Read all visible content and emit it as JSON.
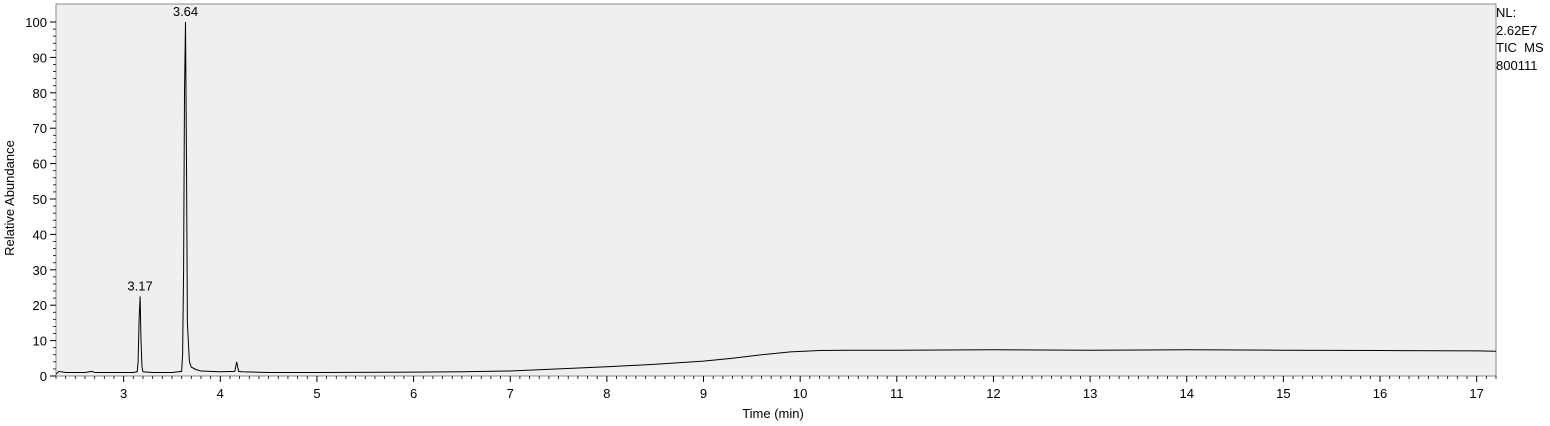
{
  "chart_data": {
    "type": "line",
    "xlabel": "Time (min)",
    "ylabel": "Relative Abundance",
    "xlim": [
      2.3,
      17.2
    ],
    "ylim": [
      0,
      100
    ],
    "x_ticks": [
      3,
      4,
      5,
      6,
      7,
      8,
      9,
      10,
      11,
      12,
      13,
      14,
      15,
      16,
      17
    ],
    "y_ticks": [
      0,
      10,
      20,
      30,
      40,
      50,
      60,
      70,
      80,
      90,
      100
    ],
    "grid": false,
    "annotations": [
      {
        "x": 3.17,
        "y": 22.5,
        "label": "3.17"
      },
      {
        "x": 3.64,
        "y": 100,
        "label": "3.64"
      }
    ],
    "series": [
      {
        "x": [
          2.3,
          2.33,
          2.4,
          2.6,
          2.67,
          2.7,
          2.9,
          3.1,
          3.14,
          3.15,
          3.16,
          3.17,
          3.18,
          3.19,
          3.2,
          3.3,
          3.5,
          3.6,
          3.61,
          3.62,
          3.63,
          3.64,
          3.65,
          3.66,
          3.68,
          3.7,
          3.75,
          3.8,
          4.0,
          4.15,
          4.17,
          4.18,
          4.19,
          4.22,
          4.5,
          5.0,
          6.0,
          6.5,
          7.0,
          7.5,
          8.0,
          8.5,
          9.0,
          9.3,
          9.6,
          9.9,
          10.2,
          10.5,
          11.0,
          12.0,
          13.0,
          14.0,
          15.0,
          16.0,
          17.0,
          17.2
        ],
        "y": [
          0.5,
          1.3,
          1.0,
          1.0,
          1.3,
          1.0,
          1.0,
          1.0,
          1.2,
          4.0,
          16.0,
          22.5,
          10.0,
          2.5,
          1.2,
          1.0,
          1.0,
          1.3,
          6.0,
          30.0,
          80.0,
          100.0,
          60.0,
          15.0,
          4.0,
          2.5,
          1.8,
          1.4,
          1.2,
          1.3,
          4.0,
          2.5,
          1.3,
          1.2,
          1.0,
          1.0,
          1.1,
          1.2,
          1.4,
          2.0,
          2.6,
          3.3,
          4.2,
          5.0,
          6.0,
          6.8,
          7.2,
          7.3,
          7.3,
          7.4,
          7.3,
          7.4,
          7.3,
          7.2,
          7.1,
          7.0
        ]
      }
    ]
  },
  "info": {
    "nl_label": "NL:",
    "nl_value": "2.62E7",
    "scan_type": "TIC  MS",
    "file_id": "800111"
  }
}
